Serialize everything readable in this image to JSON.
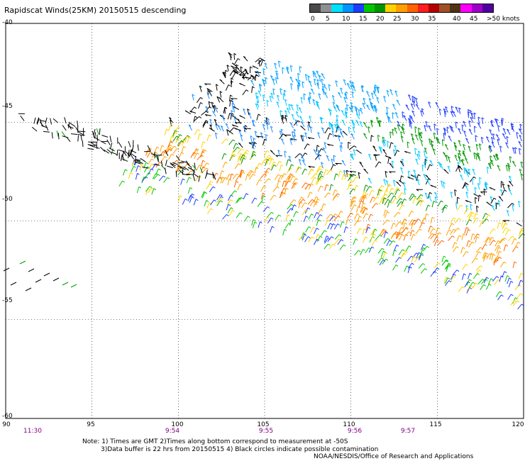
{
  "title": "Rapidscat Winds(25KM) 20150515 descending",
  "legend": {
    "colors": [
      "#4a4a4a",
      "#909090",
      "#00e0ff",
      "#0096ff",
      "#1e3cff",
      "#00c800",
      "#009600",
      "#ffd200",
      "#ffa000",
      "#ff6400",
      "#ff1e1e",
      "#b40000",
      "#a05028",
      "#503214",
      "#ff00ff",
      "#a000c8",
      "#5000a0"
    ],
    "labels": [
      "0",
      "5",
      "10",
      "15",
      "20",
      "25",
      "30",
      "35",
      "40",
      "45",
      ">50 knots"
    ]
  },
  "axes": {
    "y_labels": [
      "-40",
      "-45",
      "-50",
      "-55",
      "-60"
    ],
    "x_labels": [
      "90",
      "95",
      "100",
      "105",
      "110",
      "115",
      "120"
    ]
  },
  "time_labels": [
    "11:30",
    "9:54",
    "9:55",
    "9:56",
    "9:57"
  ],
  "notes": {
    "line1": "Note: 1) Times are GMT 2)Times along bottom correspond to measurement at -50S",
    "line2": "3)Data buffer is 22 hrs from 20150515 4) Black circles indicate possible contamination"
  },
  "credit": "NOAA/NESDIS/Office of Research and Applications"
}
